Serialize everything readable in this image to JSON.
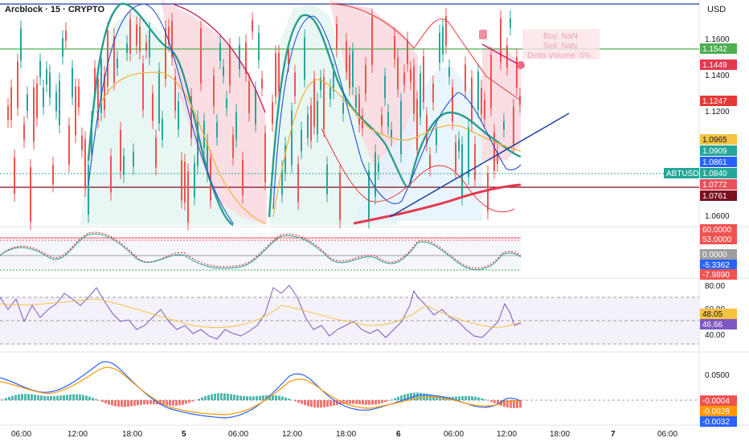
{
  "header": {
    "symbol_title": "Arcblock · 15 · CRYPTO",
    "currency": "USD"
  },
  "colors": {
    "up": "#26a69a",
    "down": "#ef5350",
    "teal_line": "#2a9d8f",
    "blue_line": "#1e4fd1",
    "red_line": "#e53935",
    "orange_line": "#f2b441",
    "dark_line": "#7a0d1a",
    "green_hline": "#4caf50",
    "navy_hline": "#1e3f9e"
  },
  "price_axis": {
    "ticks": [
      "1.1600",
      "1.1400",
      "1.1200",
      "1.0600"
    ]
  },
  "price_badges": [
    {
      "value": "1.1542",
      "color": "#4caf50",
      "text_color": "#ffffff"
    },
    {
      "value": "1.1449",
      "color": "#e53952",
      "text_color": "#ffffff"
    },
    {
      "value": "1.1247",
      "color": "#e53935",
      "text_color": "#ffffff"
    },
    {
      "value": "1.0965",
      "color": "#f5c342",
      "text_color": "#131722"
    },
    {
      "value": "1.0909",
      "color": "#26a69a",
      "text_color": "#ffffff"
    },
    {
      "value": "1.0861",
      "color": "#2962ff",
      "text_color": "#ffffff"
    },
    {
      "value": "1.0840",
      "color": "#26a69a",
      "text_color": "#ffffff"
    },
    {
      "value": "1.0772",
      "color": "#e8505b",
      "text_color": "#ffffff"
    },
    {
      "value": "1.0761",
      "color": "#7a1020",
      "text_color": "#ffffff"
    }
  ],
  "symbol_tag": "ABTUSD",
  "tooltip": {
    "buy": "Buy: NaN",
    "sell": "Sell: NaN",
    "delta": "Delta Volume: 0%"
  },
  "stoch_panel": {
    "badges": [
      {
        "value": "60.0000",
        "color": "#ef5350",
        "text_color": "#ffffff"
      },
      {
        "value": "53.0000",
        "color": "#ef5350",
        "text_color": "#ffffff"
      },
      {
        "value": "0.0000",
        "color": "#9e9e9e",
        "text_color": "#ffffff"
      },
      {
        "value": "-5.3362",
        "color": "#2962ff",
        "text_color": "#ffffff"
      },
      {
        "value": "-7.9890",
        "color": "#ef5350",
        "text_color": "#ffffff"
      }
    ]
  },
  "rsi_panel": {
    "ticks": [
      "80.00",
      "60.00",
      "40.00"
    ],
    "badges": [
      {
        "value": "48.05",
        "color": "#f5c342",
        "text_color": "#131722"
      },
      {
        "value": "46.66",
        "color": "#7e57c2",
        "text_color": "#ffffff"
      }
    ]
  },
  "macd_panel": {
    "ticks": [
      "0.0500"
    ],
    "badges": [
      {
        "value": "-0.0004",
        "color": "#ef5350",
        "text_color": "#ffffff"
      },
      {
        "value": "-0.0028",
        "color": "#ff9800",
        "text_color": "#ffffff"
      },
      {
        "value": "-0.0032",
        "color": "#2962ff",
        "text_color": "#ffffff"
      }
    ]
  },
  "time_axis": [
    {
      "label": "06:00",
      "bold": false
    },
    {
      "label": "12:00",
      "bold": false
    },
    {
      "label": "18:00",
      "bold": false
    },
    {
      "label": "5",
      "bold": true
    },
    {
      "label": "06:00",
      "bold": false
    },
    {
      "label": "12:00",
      "bold": false
    },
    {
      "label": "18:00",
      "bold": false
    },
    {
      "label": "6",
      "bold": true
    },
    {
      "label": "06:00",
      "bold": false
    },
    {
      "label": "12:00",
      "bold": false
    },
    {
      "label": "18:00",
      "bold": false
    },
    {
      "label": "7",
      "bold": true
    },
    {
      "label": "06:00",
      "bold": false
    }
  ]
}
